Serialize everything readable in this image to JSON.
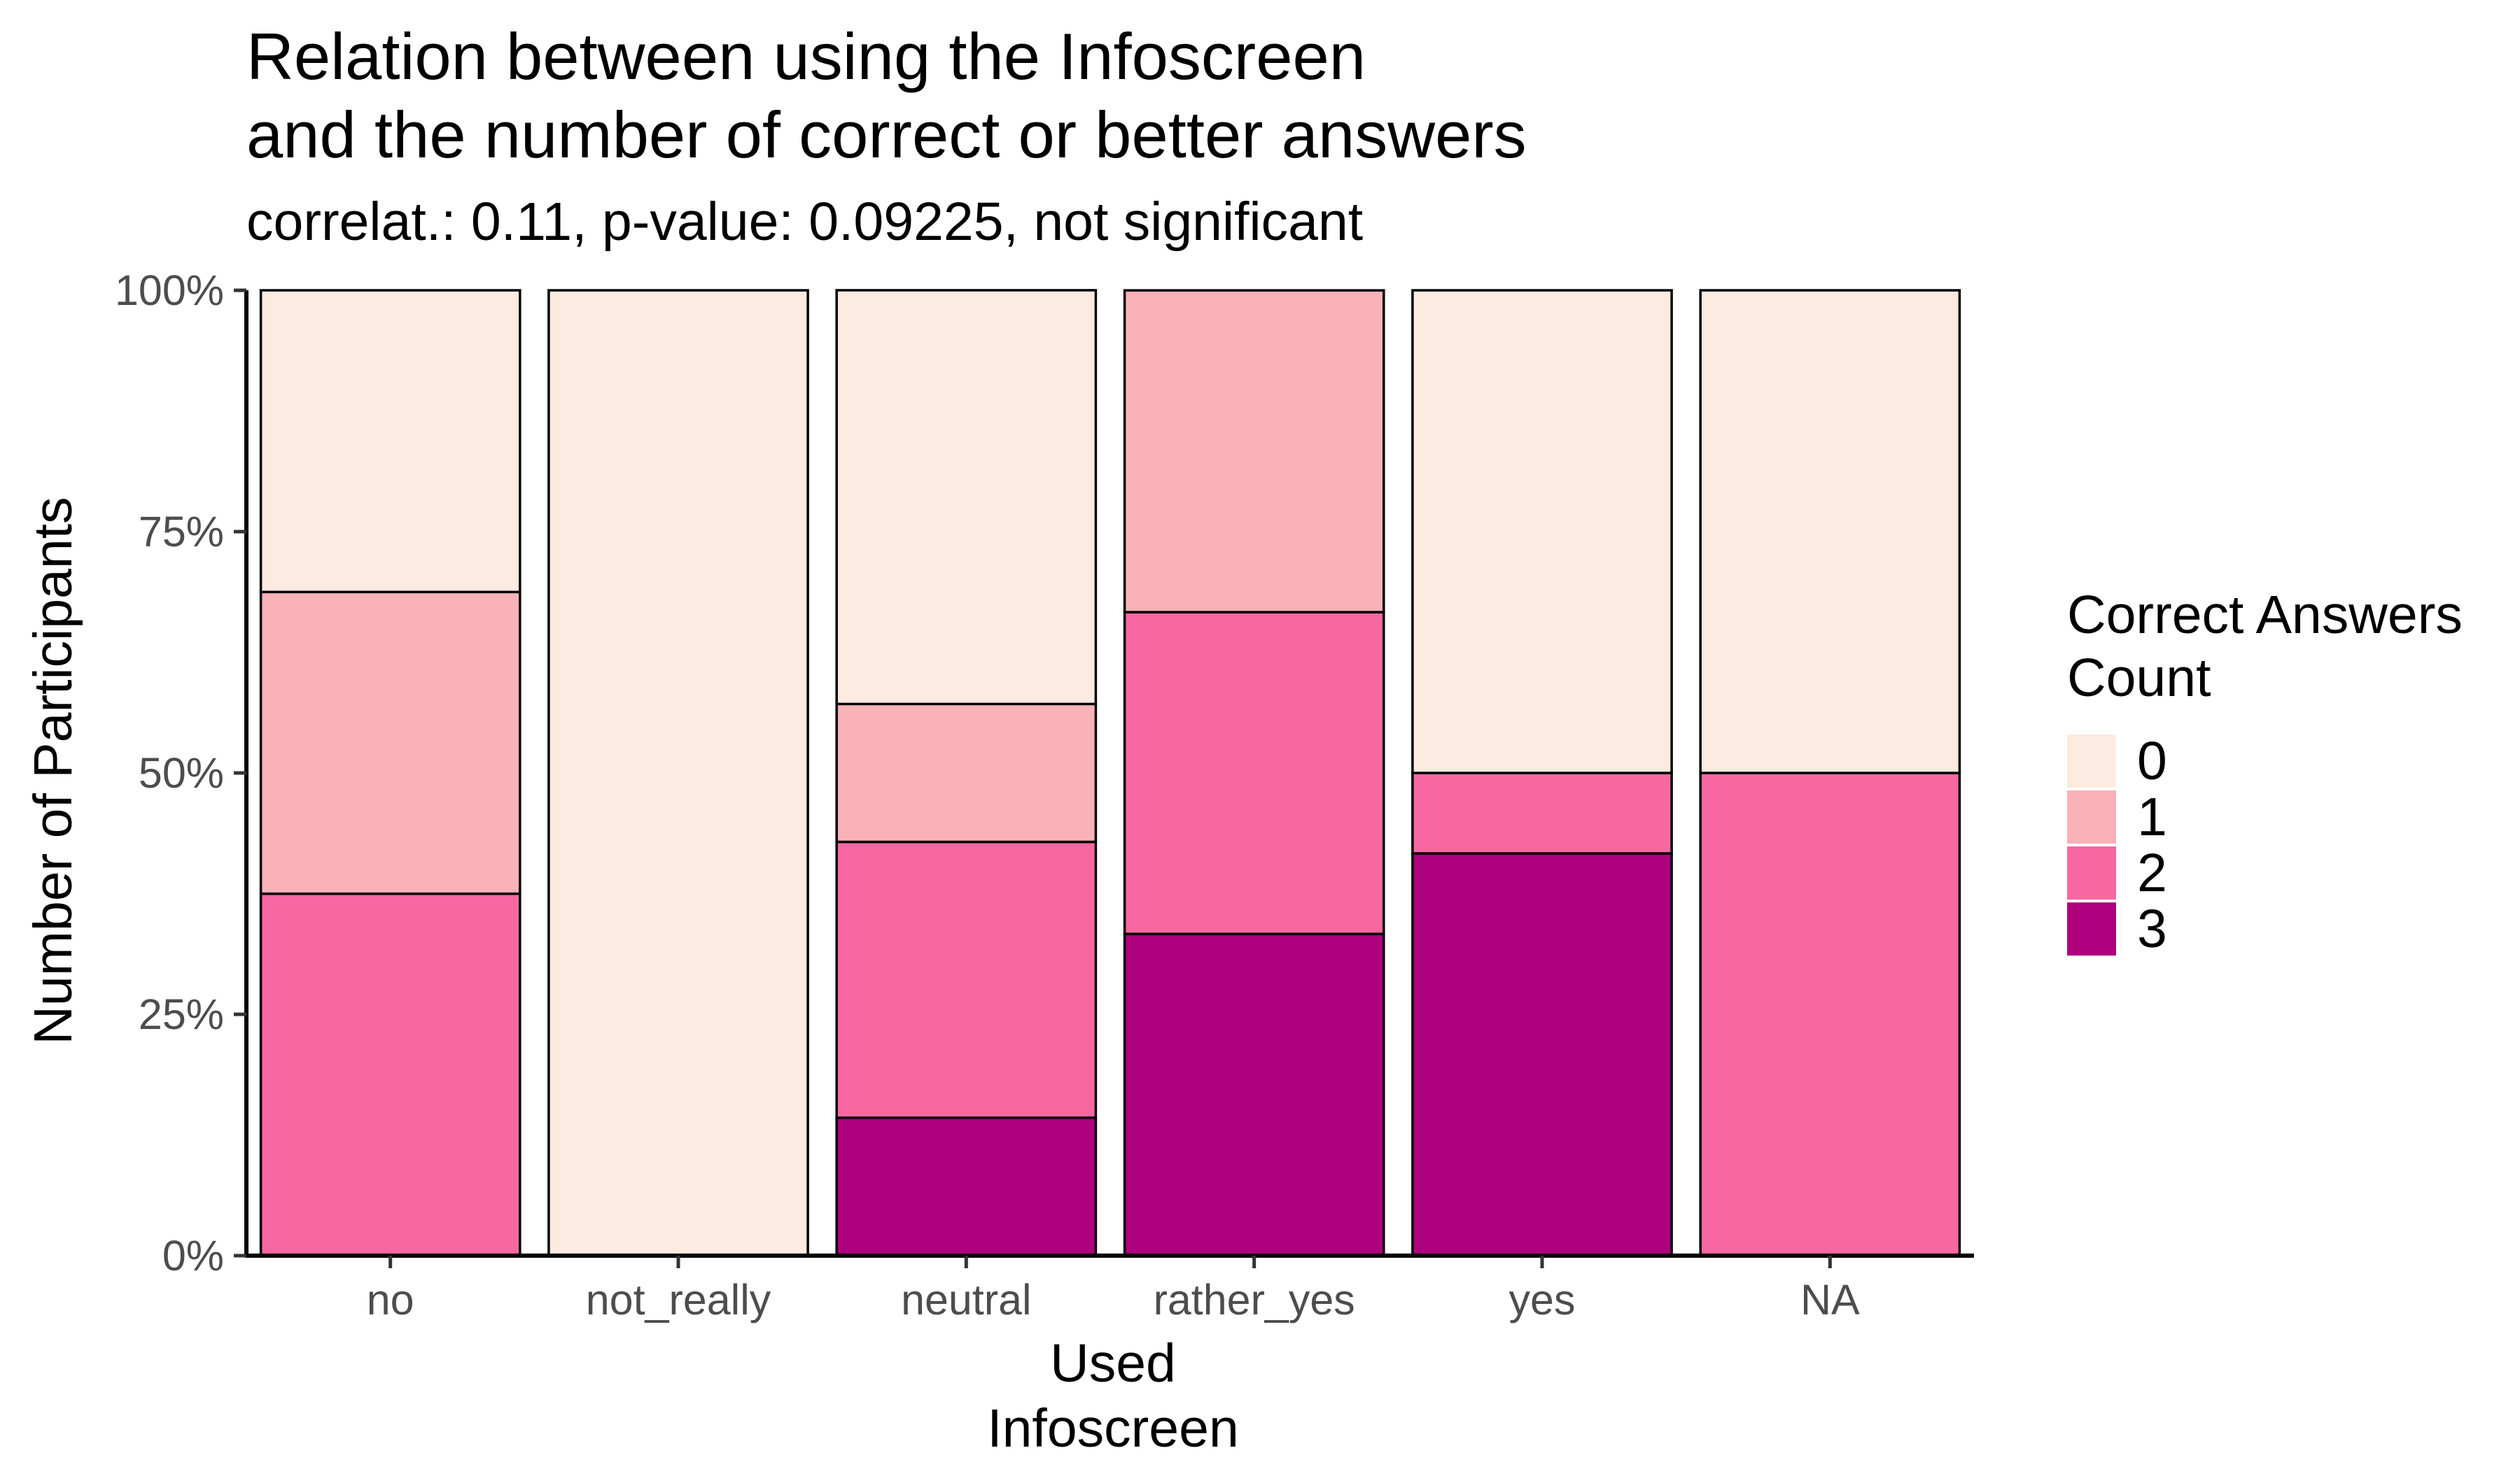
{
  "chart_data": {
    "type": "bar",
    "stacked": true,
    "normalized": true,
    "title_lines": [
      "Relation between using the Infoscreen",
      "and the number of correct or better answers"
    ],
    "subtitle": "correlat.: 0.11, p-value: 0.09225, not significant",
    "xlabel_lines": [
      "Used",
      "Infoscreen"
    ],
    "ylabel": "Number of Participants",
    "ylim": [
      0,
      1
    ],
    "y_ticks": [
      0,
      0.25,
      0.5,
      0.75,
      1
    ],
    "y_tick_labels": [
      "0%",
      "25%",
      "50%",
      "75%",
      "100%"
    ],
    "categories": [
      "no",
      "not_really",
      "neutral",
      "rather_yes",
      "yes",
      "NA"
    ],
    "legend": {
      "title_lines": [
        "Correct Answers",
        "Count"
      ],
      "position": "right"
    },
    "series": [
      {
        "name": "0",
        "color": "#FDEAE0",
        "values": [
          0.3125,
          1.0,
          0.4286,
          0.0,
          0.5,
          0.5
        ]
      },
      {
        "name": "1",
        "color": "#F9B2B8",
        "values": [
          0.3125,
          0.0,
          0.1429,
          0.3333,
          0.0,
          0.0
        ]
      },
      {
        "name": "2",
        "color": "#F768A1",
        "values": [
          0.375,
          0.0,
          0.2857,
          0.3333,
          0.0833,
          0.5
        ]
      },
      {
        "name": "3",
        "color": "#AE017E",
        "values": [
          0.0,
          0.0,
          0.1429,
          0.3333,
          0.4167,
          0.0
        ]
      }
    ],
    "grid": false
  }
}
